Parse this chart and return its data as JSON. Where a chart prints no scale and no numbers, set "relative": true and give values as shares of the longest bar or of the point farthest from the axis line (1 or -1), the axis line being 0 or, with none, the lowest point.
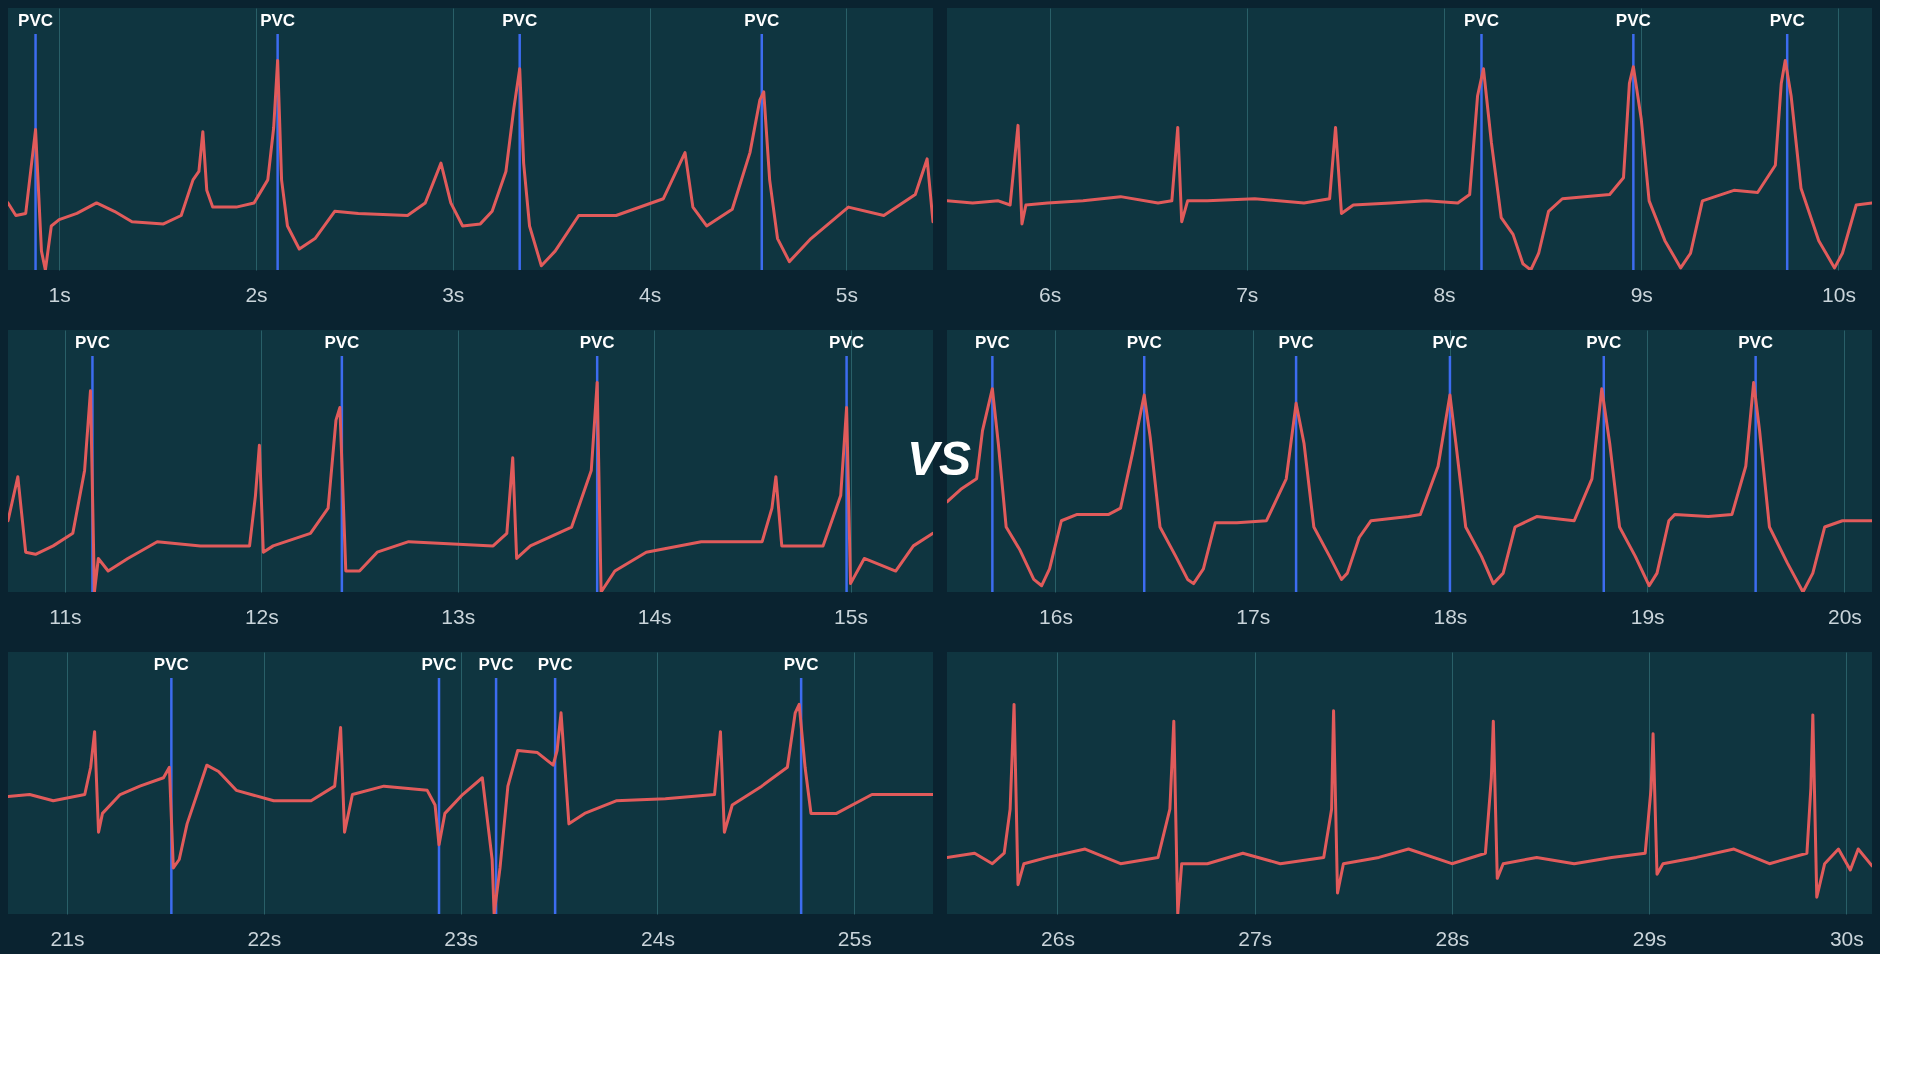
{
  "chart_data": [
    {
      "type": "line",
      "relative": true,
      "grid": "x",
      "tick_labels": "x",
      "line_style": "solid",
      "xlim": [
        0.74,
        5.44
      ],
      "xticks": [
        {
          "value": 1,
          "label": "1s"
        },
        {
          "value": 2,
          "label": "2s"
        },
        {
          "value": 3,
          "label": "3s"
        },
        {
          "value": 4,
          "label": "4s"
        },
        {
          "value": 5,
          "label": "5s"
        }
      ],
      "ref_lines": [
        {
          "axis": "x",
          "value": 0.88,
          "label": "PVC",
          "color": "#3d6cf0"
        },
        {
          "axis": "x",
          "value": 2.11,
          "label": "PVC",
          "color": "#3d6cf0"
        },
        {
          "axis": "x",
          "value": 3.34,
          "label": "PVC",
          "color": "#3d6cf0"
        },
        {
          "axis": "x",
          "value": 4.57,
          "label": "PVC",
          "color": "#3d6cf0"
        }
      ],
      "series": [
        {
          "color": "#e15b5b",
          "x": [
            0.74,
            0.78,
            0.83,
            0.88,
            0.91,
            0.93,
            0.96,
            1.0,
            1.09,
            1.19,
            1.28,
            1.37,
            1.53,
            1.62,
            1.68,
            1.71,
            1.73,
            1.75,
            1.78,
            1.9,
            1.99,
            2.06,
            2.09,
            2.11,
            2.13,
            2.16,
            2.22,
            2.3,
            2.4,
            2.52,
            2.77,
            2.86,
            2.94,
            2.99,
            3.05,
            3.14,
            3.2,
            3.27,
            3.31,
            3.34,
            3.36,
            3.39,
            3.45,
            3.52,
            3.64,
            3.83,
            4.07,
            4.18,
            4.22,
            4.29,
            4.42,
            4.51,
            4.56,
            4.58,
            4.61,
            4.65,
            4.71,
            4.82,
            5.01,
            5.19,
            5.35,
            5.41,
            5.44
          ],
          "values": [
            0.32,
            0.26,
            0.27,
            0.67,
            0.09,
            0,
            0.21,
            0.24,
            0.27,
            0.32,
            0.28,
            0.23,
            0.22,
            0.26,
            0.43,
            0.47,
            0.66,
            0.38,
            0.3,
            0.3,
            0.32,
            0.43,
            0.68,
            1.0,
            0.43,
            0.21,
            0.1,
            0.15,
            0.28,
            0.27,
            0.26,
            0.32,
            0.51,
            0.32,
            0.21,
            0.22,
            0.28,
            0.47,
            0.77,
            0.96,
            0.51,
            0.21,
            0.02,
            0.09,
            0.26,
            0.26,
            0.34,
            0.56,
            0.3,
            0.21,
            0.29,
            0.56,
            0.81,
            0.85,
            0.43,
            0.15,
            0.04,
            0.15,
            0.3,
            0.26,
            0.36,
            0.53,
            0.23
          ]
        }
      ]
    },
    {
      "type": "line",
      "relative": true,
      "grid": "x",
      "tick_labels": "x",
      "line_style": "solid",
      "xlim": [
        5.48,
        10.17
      ],
      "xticks": [
        {
          "value": 6,
          "label": "6s"
        },
        {
          "value": 7,
          "label": "7s"
        },
        {
          "value": 8,
          "label": "8s"
        },
        {
          "value": 9,
          "label": "9s"
        },
        {
          "value": 10,
          "label": "10s"
        }
      ],
      "ref_lines": [
        {
          "axis": "x",
          "value": 8.19,
          "label": "PVC",
          "color": "#3d6cf0"
        },
        {
          "axis": "x",
          "value": 8.96,
          "label": "PVC",
          "color": "#3d6cf0"
        },
        {
          "axis": "x",
          "value": 9.74,
          "label": "PVC",
          "color": "#3d6cf0"
        }
      ],
      "series": [
        {
          "color": "#e15b5b",
          "x": [
            5.48,
            5.61,
            5.74,
            5.8,
            5.84,
            5.86,
            5.88,
            5.99,
            6.17,
            6.36,
            6.55,
            6.62,
            6.65,
            6.67,
            6.7,
            6.8,
            7.04,
            7.29,
            7.42,
            7.45,
            7.48,
            7.54,
            7.73,
            7.91,
            8.07,
            8.13,
            8.17,
            8.2,
            8.24,
            8.29,
            8.35,
            8.4,
            8.44,
            8.48,
            8.53,
            8.6,
            8.84,
            8.91,
            8.94,
            8.96,
            9.0,
            9.04,
            9.12,
            9.2,
            9.25,
            9.31,
            9.47,
            9.59,
            9.68,
            9.71,
            9.73,
            9.76,
            9.81,
            9.9,
            9.98,
            10.02,
            10.09,
            10.17
          ],
          "values": [
            0.33,
            0.32,
            0.33,
            0.31,
            0.69,
            0.22,
            0.31,
            0.32,
            0.33,
            0.35,
            0.32,
            0.33,
            0.68,
            0.23,
            0.33,
            0.33,
            0.34,
            0.32,
            0.34,
            0.68,
            0.27,
            0.31,
            0.32,
            0.33,
            0.32,
            0.36,
            0.83,
            0.96,
            0.61,
            0.25,
            0.17,
            0.03,
            0,
            0.08,
            0.28,
            0.34,
            0.36,
            0.44,
            0.89,
            0.97,
            0.72,
            0.33,
            0.14,
            0.01,
            0.08,
            0.33,
            0.38,
            0.37,
            0.5,
            0.89,
            1.0,
            0.83,
            0.39,
            0.14,
            0.01,
            0.08,
            0.31,
            0.32
          ]
        }
      ]
    },
    {
      "type": "line",
      "relative": true,
      "grid": "x",
      "tick_labels": "x",
      "line_style": "solid",
      "xlim": [
        10.71,
        15.42
      ],
      "xticks": [
        {
          "value": 11,
          "label": "11s"
        },
        {
          "value": 12,
          "label": "12s"
        },
        {
          "value": 13,
          "label": "13s"
        },
        {
          "value": 14,
          "label": "14s"
        },
        {
          "value": 15,
          "label": "15s"
        }
      ],
      "ref_lines": [
        {
          "axis": "x",
          "value": 11.14,
          "label": "PVC",
          "color": "#3d6cf0"
        },
        {
          "axis": "x",
          "value": 12.41,
          "label": "PVC",
          "color": "#3d6cf0"
        },
        {
          "axis": "x",
          "value": 13.71,
          "label": "PVC",
          "color": "#3d6cf0"
        },
        {
          "axis": "x",
          "value": 14.98,
          "label": "PVC",
          "color": "#3d6cf0"
        }
      ],
      "series": [
        {
          "color": "#e15b5b",
          "x": [
            10.71,
            10.76,
            10.8,
            10.85,
            10.94,
            11.04,
            11.1,
            11.13,
            11.15,
            11.17,
            11.22,
            11.32,
            11.47,
            11.69,
            11.94,
            11.97,
            11.99,
            12.01,
            12.06,
            12.25,
            12.34,
            12.38,
            12.4,
            12.43,
            12.5,
            12.59,
            12.75,
            13.18,
            13.25,
            13.28,
            13.3,
            13.37,
            13.58,
            13.68,
            13.71,
            13.73,
            13.8,
            13.96,
            14.24,
            14.55,
            14.6,
            14.62,
            14.65,
            14.86,
            14.95,
            14.98,
            15.0,
            15.07,
            15.23,
            15.32,
            15.42
          ],
          "values": [
            0.34,
            0.55,
            0.19,
            0.18,
            0.22,
            0.28,
            0.58,
            0.96,
            0,
            0.16,
            0.1,
            0.16,
            0.24,
            0.22,
            0.22,
            0.46,
            0.7,
            0.19,
            0.22,
            0.28,
            0.4,
            0.82,
            0.88,
            0.1,
            0.1,
            0.19,
            0.24,
            0.22,
            0.28,
            0.64,
            0.16,
            0.22,
            0.31,
            0.58,
            1.0,
            0,
            0.1,
            0.19,
            0.24,
            0.24,
            0.4,
            0.55,
            0.22,
            0.22,
            0.46,
            0.88,
            0.04,
            0.16,
            0.1,
            0.22,
            0.28
          ]
        }
      ]
    },
    {
      "type": "line",
      "relative": true,
      "grid": "x",
      "tick_labels": "x",
      "line_style": "solid",
      "xlim": [
        15.45,
        20.14
      ],
      "annotations": [
        "VS"
      ],
      "xticks": [
        {
          "value": 16,
          "label": "16s"
        },
        {
          "value": 17,
          "label": "17s"
        },
        {
          "value": 18,
          "label": "18s"
        },
        {
          "value": 19,
          "label": "19s"
        },
        {
          "value": 20,
          "label": "20s"
        }
      ],
      "ref_lines": [
        {
          "axis": "x",
          "value": 15.68,
          "label": "PVC",
          "color": "#3d6cf0"
        },
        {
          "axis": "x",
          "value": 16.45,
          "label": "PVC",
          "color": "#3d6cf0"
        },
        {
          "axis": "x",
          "value": 17.22,
          "label": "PVC",
          "color": "#3d6cf0"
        },
        {
          "axis": "x",
          "value": 18.0,
          "label": "PVC",
          "color": "#3d6cf0"
        },
        {
          "axis": "x",
          "value": 18.78,
          "label": "PVC",
          "color": "#3d6cf0"
        },
        {
          "axis": "x",
          "value": 19.55,
          "label": "PVC",
          "color": "#3d6cf0"
        }
      ],
      "series": [
        {
          "color": "#e15b5b",
          "x": [
            15.45,
            15.52,
            15.6,
            15.63,
            15.68,
            15.71,
            15.75,
            15.82,
            15.89,
            15.93,
            15.97,
            16.03,
            16.11,
            16.27,
            16.33,
            16.39,
            16.45,
            16.48,
            16.53,
            16.61,
            16.67,
            16.7,
            16.75,
            16.81,
            16.92,
            17.07,
            17.17,
            17.22,
            17.26,
            17.31,
            17.39,
            17.45,
            17.48,
            17.54,
            17.6,
            17.79,
            17.85,
            17.94,
            18.0,
            18.03,
            18.08,
            18.16,
            18.22,
            18.27,
            18.33,
            18.44,
            18.63,
            18.72,
            18.77,
            18.81,
            18.86,
            18.94,
            19.01,
            19.05,
            19.11,
            19.14,
            19.31,
            19.43,
            19.5,
            19.54,
            19.57,
            19.62,
            19.71,
            19.79,
            19.84,
            19.9,
            19.99,
            20.14
          ],
          "values": [
            0.43,
            0.49,
            0.54,
            0.77,
            0.97,
            0.71,
            0.31,
            0.2,
            0.06,
            0.03,
            0.11,
            0.34,
            0.37,
            0.37,
            0.4,
            0.66,
            0.94,
            0.74,
            0.31,
            0.17,
            0.06,
            0.04,
            0.11,
            0.33,
            0.33,
            0.34,
            0.54,
            0.9,
            0.71,
            0.31,
            0.17,
            0.06,
            0.09,
            0.26,
            0.34,
            0.36,
            0.37,
            0.6,
            0.94,
            0.71,
            0.31,
            0.17,
            0.04,
            0.09,
            0.31,
            0.36,
            0.34,
            0.54,
            0.97,
            0.71,
            0.31,
            0.17,
            0.03,
            0.09,
            0.34,
            0.37,
            0.36,
            0.37,
            0.6,
            1.0,
            0.77,
            0.31,
            0.14,
            0,
            0.09,
            0.31,
            0.34,
            0.34
          ]
        }
      ]
    },
    {
      "type": "line",
      "relative": true,
      "grid": "x",
      "tick_labels": "x",
      "line_style": "solid",
      "xlim": [
        20.7,
        25.4
      ],
      "xticks": [
        {
          "value": 21,
          "label": "21s"
        },
        {
          "value": 22,
          "label": "22s"
        },
        {
          "value": 23,
          "label": "23s"
        },
        {
          "value": 24,
          "label": "24s"
        },
        {
          "value": 25,
          "label": "25s"
        }
      ],
      "ref_lines": [
        {
          "axis": "x",
          "value": 21.53,
          "label": "PVC",
          "color": "#3d6cf0"
        },
        {
          "axis": "x",
          "value": 22.89,
          "label": "PVC",
          "color": "#3d6cf0"
        },
        {
          "axis": "x",
          "value": 23.18,
          "label": "PVC",
          "color": "#3d6cf0"
        },
        {
          "axis": "x",
          "value": 23.48,
          "label": "PVC",
          "color": "#3d6cf0"
        },
        {
          "axis": "x",
          "value": 24.73,
          "label": "PVC",
          "color": "#3d6cf0"
        }
      ],
      "series": [
        {
          "color": "#e15b5b",
          "x": [
            20.7,
            20.81,
            20.93,
            21.09,
            21.12,
            21.14,
            21.16,
            21.18,
            21.27,
            21.37,
            21.49,
            21.52,
            21.54,
            21.57,
            21.61,
            21.71,
            21.77,
            21.86,
            22.05,
            22.24,
            22.36,
            22.39,
            22.41,
            22.45,
            22.61,
            22.83,
            22.87,
            22.89,
            22.92,
            23.01,
            23.11,
            23.16,
            23.17,
            23.2,
            23.24,
            23.29,
            23.39,
            23.47,
            23.49,
            23.51,
            23.55,
            23.63,
            23.79,
            24.04,
            24.29,
            24.32,
            24.34,
            24.38,
            24.53,
            24.66,
            24.7,
            24.72,
            24.75,
            24.78,
            24.91,
            25.09,
            25.4
          ],
          "values": [
            0.56,
            0.57,
            0.54,
            0.57,
            0.7,
            0.87,
            0.39,
            0.48,
            0.57,
            0.61,
            0.65,
            0.7,
            0.22,
            0.26,
            0.43,
            0.71,
            0.68,
            0.59,
            0.54,
            0.54,
            0.61,
            0.89,
            0.39,
            0.57,
            0.61,
            0.59,
            0.52,
            0.33,
            0.48,
            0.57,
            0.65,
            0.26,
            0,
            0.22,
            0.61,
            0.78,
            0.77,
            0.71,
            0.78,
            0.96,
            0.43,
            0.48,
            0.54,
            0.55,
            0.57,
            0.87,
            0.39,
            0.52,
            0.61,
            0.7,
            0.96,
            1.0,
            0.7,
            0.48,
            0.48,
            0.57,
            0.57
          ]
        }
      ]
    },
    {
      "type": "line",
      "relative": true,
      "grid": "x",
      "tick_labels": "x",
      "line_style": "solid",
      "xlim": [
        25.44,
        30.13
      ],
      "xticks": [
        {
          "value": 26,
          "label": "26s"
        },
        {
          "value": 27,
          "label": "27s"
        },
        {
          "value": 28,
          "label": "28s"
        },
        {
          "value": 29,
          "label": "29s"
        },
        {
          "value": 30,
          "label": "30s"
        }
      ],
      "series": [
        {
          "color": "#e15b5b",
          "x": [
            25.44,
            25.58,
            25.67,
            25.73,
            25.76,
            25.78,
            25.8,
            25.83,
            25.95,
            26.14,
            26.32,
            26.51,
            26.57,
            26.59,
            26.61,
            26.63,
            26.76,
            26.94,
            27.13,
            27.35,
            27.39,
            27.4,
            27.42,
            27.45,
            27.63,
            27.78,
            28.0,
            28.17,
            28.2,
            28.21,
            28.23,
            28.26,
            28.43,
            28.62,
            28.81,
            28.98,
            29.01,
            29.02,
            29.04,
            29.07,
            29.24,
            29.43,
            29.61,
            29.8,
            29.82,
            29.83,
            29.85,
            29.89,
            29.96,
            30.02,
            30.06,
            30.13
          ],
          "values": [
            0.27,
            0.29,
            0.24,
            0.29,
            0.5,
            1.0,
            0.14,
            0.24,
            0.27,
            0.31,
            0.24,
            0.27,
            0.5,
            0.92,
            0,
            0.24,
            0.24,
            0.29,
            0.24,
            0.27,
            0.5,
            0.97,
            0.1,
            0.24,
            0.27,
            0.31,
            0.24,
            0.29,
            0.65,
            0.92,
            0.17,
            0.24,
            0.27,
            0.24,
            0.27,
            0.29,
            0.6,
            0.86,
            0.19,
            0.24,
            0.27,
            0.31,
            0.24,
            0.29,
            0.6,
            0.95,
            0.08,
            0.24,
            0.31,
            0.21,
            0.31,
            0.23
          ]
        }
      ]
    }
  ]
}
